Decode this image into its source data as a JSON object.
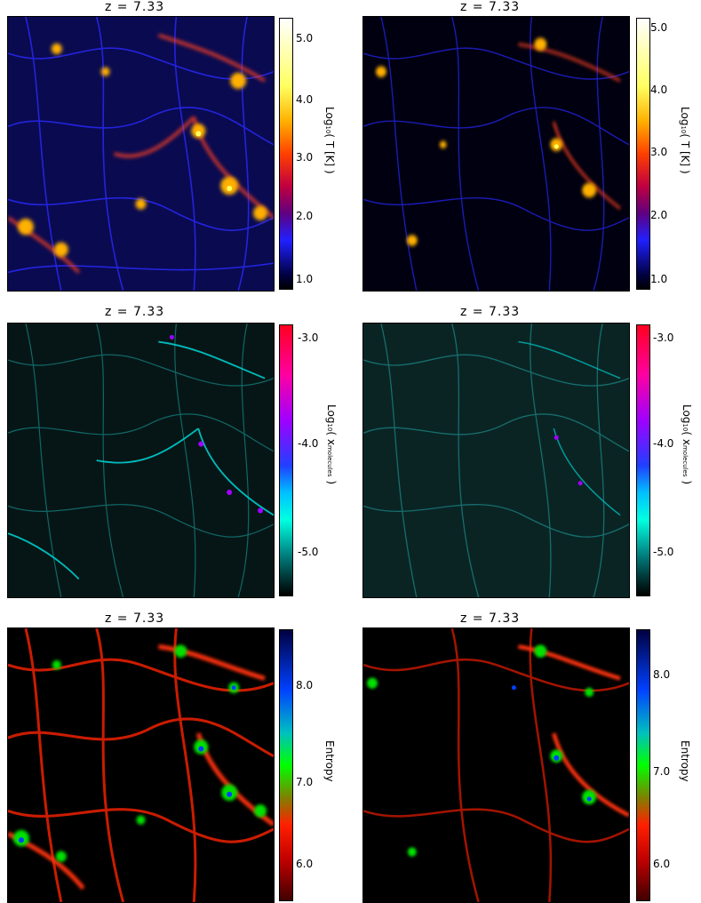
{
  "panels": [
    {
      "title": "z = 7.33",
      "label_main": "Log",
      "label_sub": "10",
      "label_rest": "( T [K] )",
      "ticks": [
        "5.0",
        "4.0",
        "3.0",
        "2.0",
        "1.0"
      ],
      "colormap": "temperature"
    },
    {
      "title": "z = 7.33",
      "label_main": "Log",
      "label_sub": "10",
      "label_rest": "( T [K] )",
      "ticks": [
        "5.0",
        "4.0",
        "3.0",
        "2.0",
        "1.0"
      ],
      "colormap": "temperature"
    },
    {
      "title": "z = 7.33",
      "label_main": "Log",
      "label_sub": "10",
      "label_rest": "( x",
      "label_sub2": "molecules",
      "label_end": " )",
      "ticks": [
        "-3.0",
        "-4.0",
        "-5.0"
      ],
      "colormap": "molecules"
    },
    {
      "title": "z = 7.33",
      "label_main": "Log",
      "label_sub": "10",
      "label_rest": "( x",
      "label_sub2": "molecules",
      "label_end": " )",
      "ticks": [
        "-3.0",
        "-4.0",
        "-5.0"
      ],
      "colormap": "molecules"
    },
    {
      "title": "z = 7.33",
      "label_main": "Entropy",
      "ticks": [
        "8.0",
        "7.0",
        "6.0"
      ],
      "colormap": "entropy"
    },
    {
      "title": "z = 7.33",
      "label_main": "Entropy",
      "ticks": [
        "8.0",
        "7.0",
        "6.0"
      ],
      "colormap": "entropy"
    }
  ],
  "colors": {
    "temperature": [
      "#ffffff",
      "#ffff60",
      "#ffb000",
      "#ff4000",
      "#c00040",
      "#600080",
      "#2020ff",
      "#000040",
      "#000000"
    ],
    "molecules": [
      "#ff0020",
      "#ff00a0",
      "#a000ff",
      "#2040ff",
      "#00c0ff",
      "#00ffe0",
      "#008080",
      "#003030",
      "#000000"
    ],
    "entropy": [
      "#000040",
      "#0040ff",
      "#00c0c0",
      "#00ff00",
      "#808000",
      "#ff2000",
      "#c00000",
      "#400000"
    ]
  }
}
